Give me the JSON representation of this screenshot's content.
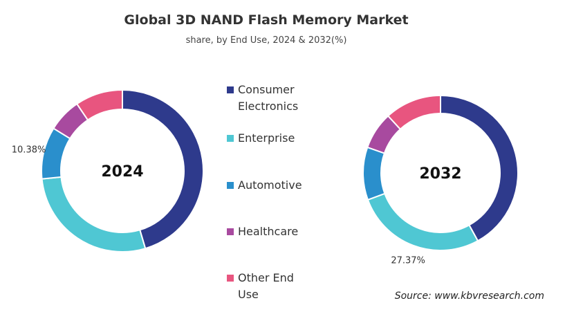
{
  "title": "Global 3D NAND Flash Memory Market",
  "subtitle": "share, by End Use, 2024 & 2032(%)",
  "source": "Source: www.kbvresearch.com",
  "chart_data": [
    {
      "type": "pie",
      "center_label": "2024",
      "categories": [
        "Consumer Electronics",
        "Enterprise",
        "Automotive",
        "Healthcare",
        "Other End Use"
      ],
      "colors": [
        "#2e3a8c",
        "#4fc7d3",
        "#2a8fcc",
        "#a84a9f",
        "#e8557f"
      ],
      "values": [
        45.42,
        28,
        10.38,
        6.7,
        9.5
      ],
      "value_labels": [
        null,
        null,
        "10.38%",
        null,
        null
      ]
    },
    {
      "type": "pie",
      "center_label": "2032",
      "categories": [
        "Consumer Electronics",
        "Enterprise",
        "Automotive",
        "Healthcare",
        "Other End Use"
      ],
      "colors": [
        "#2e3a8c",
        "#4fc7d3",
        "#2a8fcc",
        "#a84a9f",
        "#e8557f"
      ],
      "values": [
        42,
        27.37,
        11,
        7.8,
        11.83
      ],
      "value_labels": [
        null,
        "27.37%",
        null,
        null,
        null
      ]
    }
  ]
}
